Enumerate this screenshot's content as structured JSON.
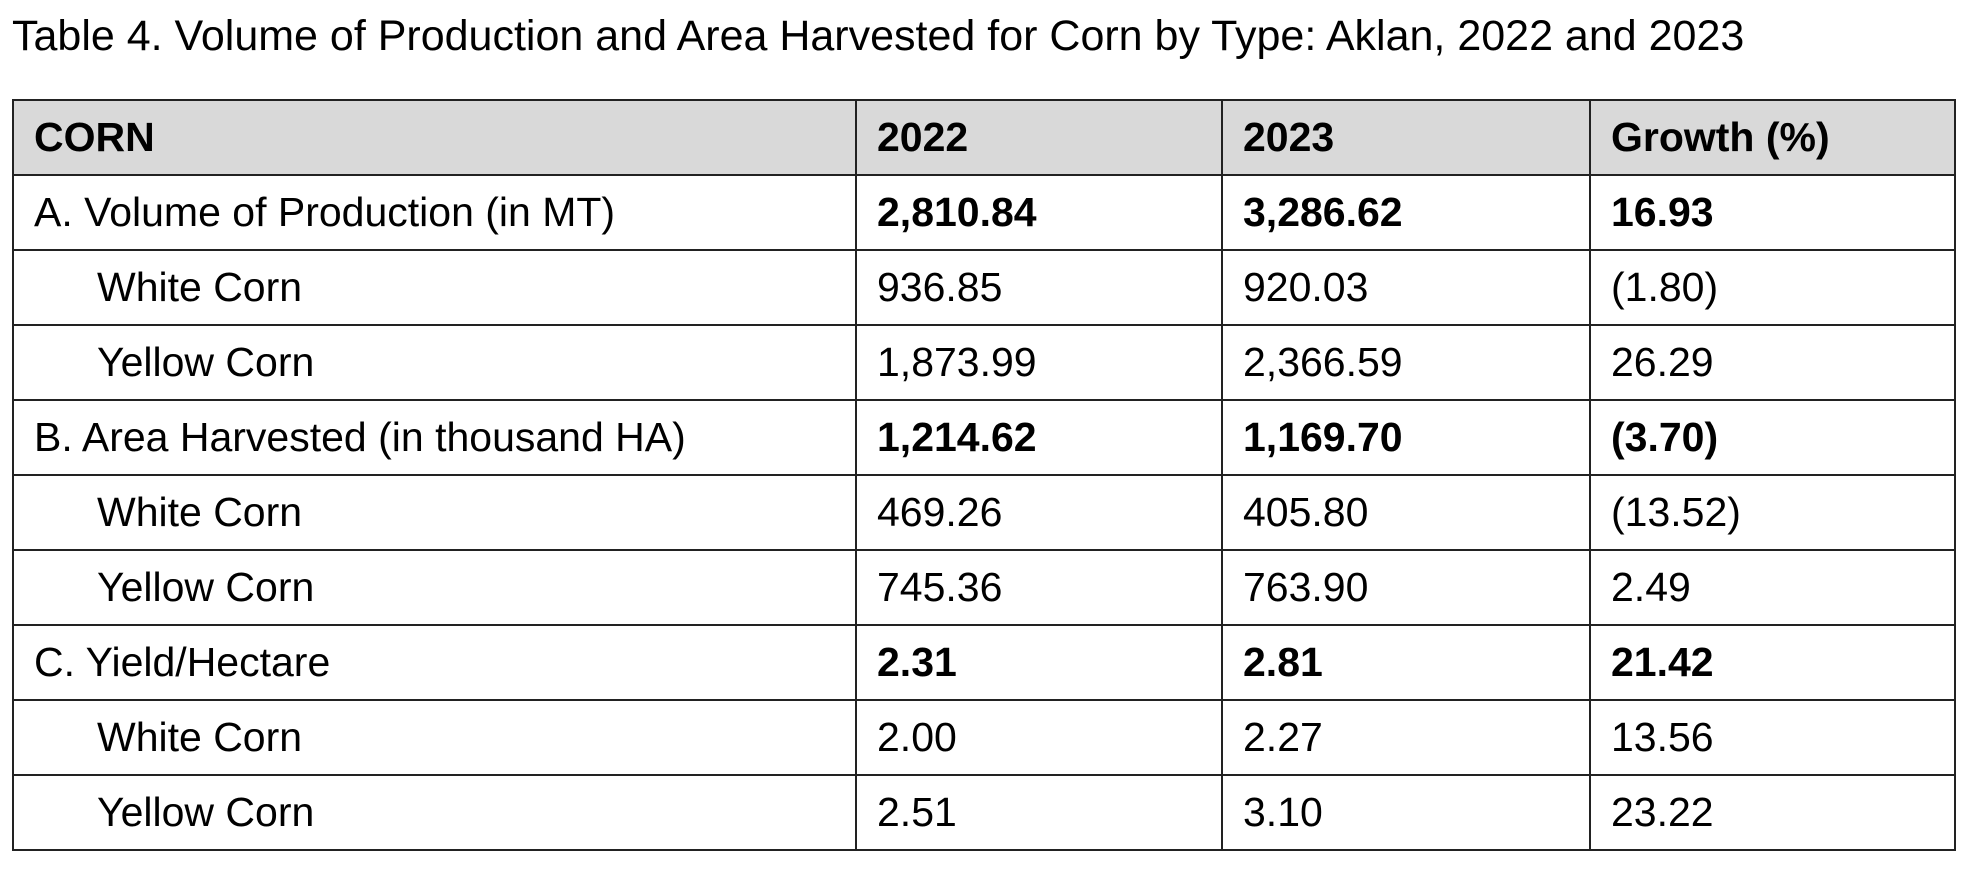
{
  "caption": "Table 4. Volume of Production and Area Harvested for Corn by Type: Aklan, 2022 and 2023",
  "table": {
    "headers": [
      "CORN",
      "2022",
      "2023",
      "Growth (%)"
    ],
    "rows": [
      {
        "label": "A. Volume of Production (in MT)",
        "v2022": "2,810.84",
        "v2023": "3,286.62",
        "growth": "16.93"
      },
      {
        "label": "White Corn",
        "v2022": "936.85",
        "v2023": "920.03",
        "growth": "(1.80)"
      },
      {
        "label": "Yellow Corn",
        "v2022": "1,873.99",
        "v2023": "2,366.59",
        "growth": "26.29"
      },
      {
        "label": "B. Area Harvested (in thousand HA)",
        "v2022": "1,214.62",
        "v2023": "1,169.70",
        "growth": "(3.70)"
      },
      {
        "label": "White Corn",
        "v2022": "469.26",
        "v2023": "405.80",
        "growth": "(13.52)"
      },
      {
        "label": "Yellow Corn",
        "v2022": "745.36",
        "v2023": "763.90",
        "growth": "2.49"
      },
      {
        "label": "C. Yield/Hectare",
        "v2022": "2.31",
        "v2023": "2.81",
        "growth": "21.42"
      },
      {
        "label": "White Corn",
        "v2022": "2.00",
        "v2023": "2.27",
        "growth": "13.56"
      },
      {
        "label": "Yellow Corn",
        "v2022": "2.51",
        "v2023": "3.10",
        "growth": "23.22"
      }
    ]
  },
  "colors": {
    "header_background": "#d9d9d9",
    "border": "#222222",
    "text": "#000000"
  }
}
